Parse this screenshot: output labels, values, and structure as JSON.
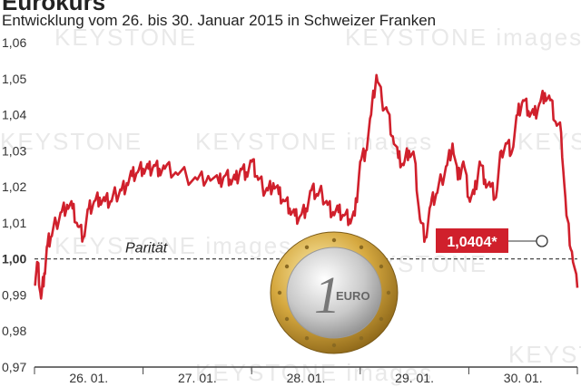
{
  "header": {
    "title": "Eurokurs",
    "subtitle": "Entwicklung vom 26. bis 30. Januar 2015 in Schweizer Franken"
  },
  "chart_data": {
    "type": "line",
    "title": "Eurokurs",
    "subtitle": "Entwicklung vom 26. bis 30. Januar 2015 in Schweizer Franken",
    "ylim": [
      0.97,
      1.06
    ],
    "y_ticks": [
      "1,06",
      "1,05",
      "1,04",
      "1,03",
      "1,02",
      "1,01",
      "1,00",
      "0,99",
      "0,98",
      "0,97"
    ],
    "x_ticks": [
      "26. 01.",
      "27. 01.",
      "28. 01.",
      "29. 01.",
      "30. 01."
    ],
    "grid": false,
    "reference_line": {
      "value": 1.0,
      "label": "Parität"
    },
    "annotation": {
      "label": "1,0404*",
      "value": 1.0404
    },
    "series": [
      {
        "color": "#d0202c",
        "x": [
          0,
          0.03,
          0.06,
          0.09,
          0.12,
          0.15,
          0.2,
          0.25,
          0.3,
          0.35,
          0.4,
          0.45,
          0.5,
          0.55,
          0.6,
          0.65,
          0.7,
          0.75,
          0.8,
          0.85,
          0.9,
          0.95,
          1.0,
          1.05,
          1.1,
          1.15,
          1.2,
          1.3,
          1.4,
          1.5,
          1.6,
          1.7,
          1.75,
          1.8,
          1.85,
          1.9,
          1.95,
          2.0,
          2.05,
          2.1,
          2.15,
          2.2,
          2.25,
          2.3,
          2.35,
          2.4,
          2.45,
          2.5,
          2.55,
          2.6,
          2.65,
          2.7,
          2.75,
          2.8,
          2.85,
          2.9,
          2.95,
          3.0,
          3.05,
          3.1,
          3.15,
          3.2,
          3.25,
          3.3,
          3.35,
          3.4,
          3.45,
          3.5,
          3.55,
          3.6,
          3.65,
          3.7,
          3.75,
          3.8,
          3.85,
          3.9,
          3.95,
          4.0,
          4.05,
          4.1,
          4.15,
          4.2,
          4.25,
          4.3,
          4.35,
          4.4,
          4.45,
          4.5,
          4.55,
          4.6,
          4.65,
          4.7,
          4.75,
          4.8,
          4.85,
          4.9,
          4.95,
          5.0
        ],
        "y": [
          0.993,
          0.999,
          0.989,
          0.996,
          1.004,
          1.006,
          1.01,
          1.013,
          1.015,
          1.014,
          1.009,
          1.006,
          1.014,
          1.016,
          1.017,
          1.016,
          1.016,
          1.018,
          1.019,
          1.021,
          1.023,
          1.024,
          1.025,
          1.025,
          1.026,
          1.025,
          1.025,
          1.024,
          1.023,
          1.022,
          1.023,
          1.021,
          1.023,
          1.022,
          1.022,
          1.025,
          1.024,
          1.027,
          1.023,
          1.02,
          1.019,
          1.021,
          1.018,
          1.016,
          1.014,
          1.012,
          1.012,
          1.014,
          1.019,
          1.018,
          1.018,
          1.015,
          1.013,
          1.013,
          1.012,
          1.011,
          1.012,
          1.027,
          1.03,
          1.04,
          1.051,
          1.044,
          1.041,
          1.034,
          1.028,
          1.026,
          1.03,
          1.028,
          1.011,
          1.006,
          1.015,
          1.018,
          1.022,
          1.026,
          1.032,
          1.022,
          1.027,
          1.017,
          1.018,
          1.027,
          1.022,
          1.02,
          1.017,
          1.03,
          1.032,
          1.03,
          1.04,
          1.044,
          1.041,
          1.04,
          1.043,
          1.046,
          1.044,
          1.038,
          1.035,
          1.012,
          1.002,
          0.992
        ]
      }
    ]
  }
}
